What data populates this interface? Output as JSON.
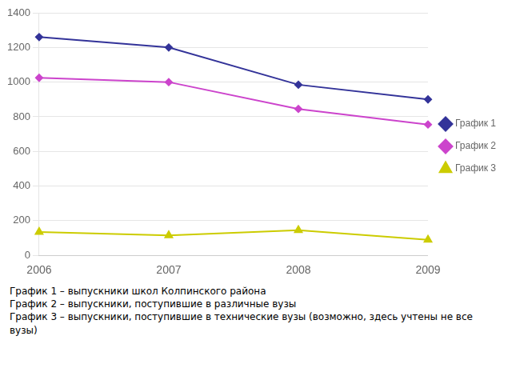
{
  "chart_data": {
    "type": "line",
    "categories": [
      "2006",
      "2007",
      "2008",
      "2009"
    ],
    "series": [
      {
        "name": "График 1",
        "color": "#333399",
        "marker": "diamond",
        "values": [
          1260,
          1200,
          985,
          900
        ]
      },
      {
        "name": "График 2",
        "color": "#cc44cc",
        "marker": "diamond",
        "values": [
          1025,
          1000,
          845,
          755
        ]
      },
      {
        "name": "График 3",
        "color": "#cccc00",
        "marker": "triangle",
        "values": [
          135,
          115,
          145,
          90
        ]
      }
    ],
    "ylim": [
      0,
      1400
    ],
    "yticks": [
      0,
      200,
      400,
      600,
      800,
      1000,
      1200,
      1400
    ],
    "grid": true,
    "legend": "right",
    "annotations": [
      "График 1 – выпускники школ Колпинского района",
      "График 2 – выпускники, поступившие в различные вузы",
      "График 3 – выпускники, поступившие в технические вузы (возможно, здесь учтены не все",
      "вузы)"
    ]
  }
}
